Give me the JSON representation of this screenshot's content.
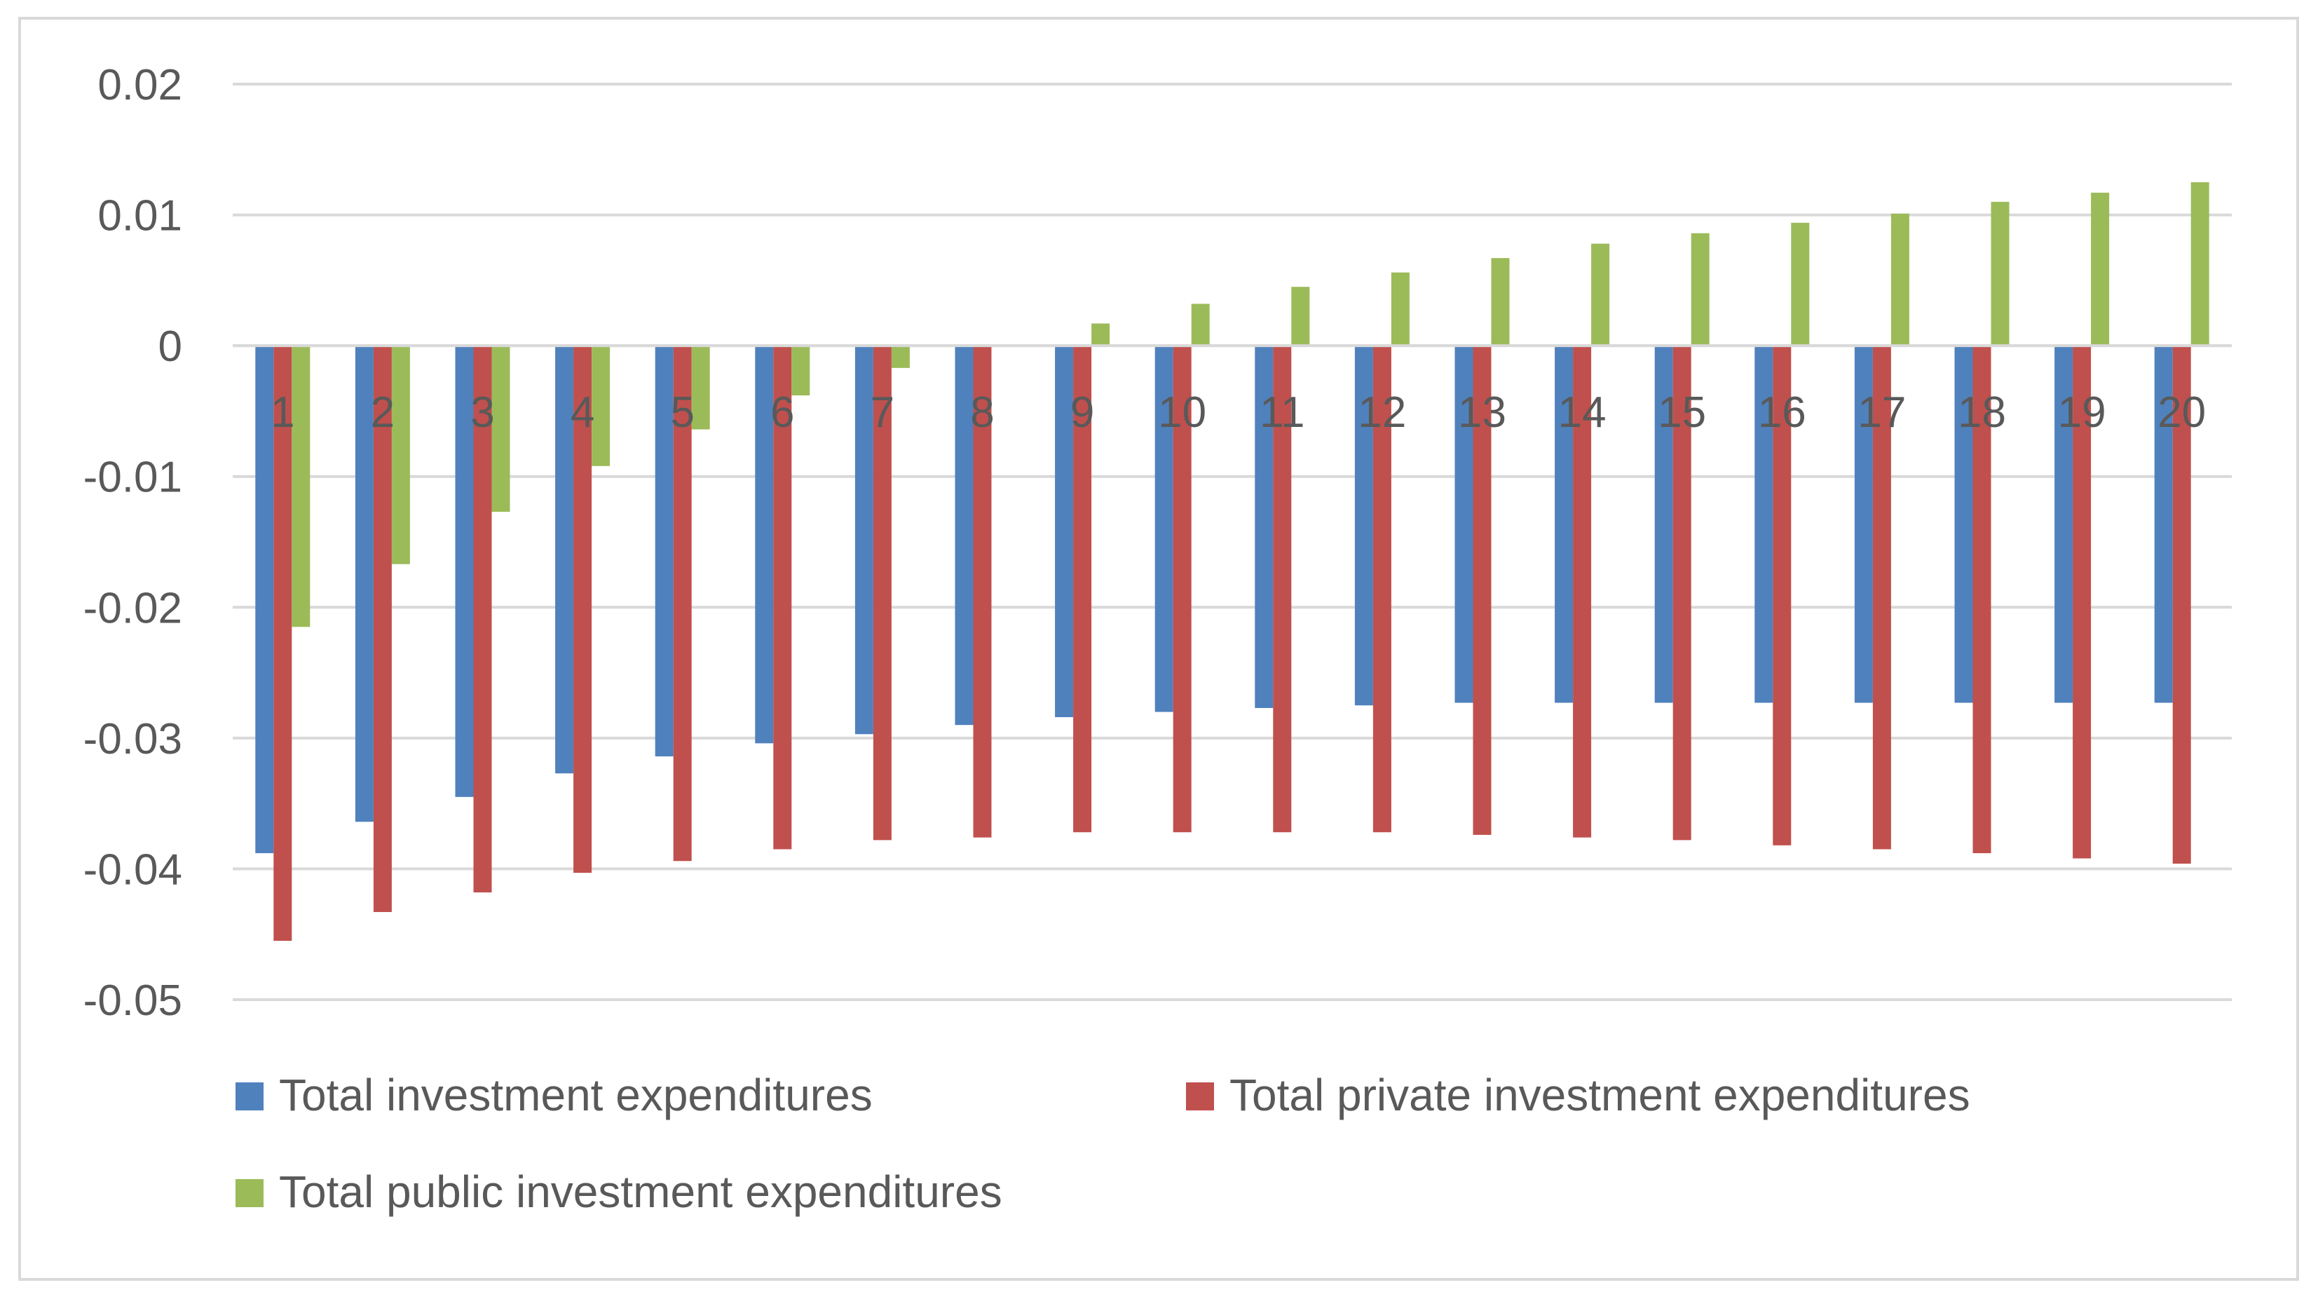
{
  "chart_data": {
    "type": "bar",
    "title": "",
    "xlabel": "",
    "ylabel": "",
    "ylim": [
      -0.05,
      0.02
    ],
    "yticks": [
      0.02,
      0.01,
      0,
      -0.01,
      -0.02,
      -0.03,
      -0.04,
      -0.05
    ],
    "ytick_labels": [
      "0.02",
      "0.01",
      "0",
      "-0.01",
      "-0.02",
      "-0.03",
      "-0.04",
      "-0.05"
    ],
    "grid": true,
    "legend_position": "bottom",
    "categories": [
      "1",
      "2",
      "3",
      "4",
      "5",
      "6",
      "7",
      "8",
      "9",
      "10",
      "11",
      "12",
      "13",
      "14",
      "15",
      "16",
      "17",
      "18",
      "19",
      "20"
    ],
    "series": [
      {
        "name": "Total investment expenditures",
        "color": "#4f81bd",
        "values": [
          -0.0388,
          -0.0364,
          -0.0345,
          -0.0327,
          -0.0314,
          -0.0304,
          -0.0297,
          -0.029,
          -0.0284,
          -0.028,
          -0.0277,
          -0.0275,
          -0.0273,
          -0.0273,
          -0.0273,
          -0.0273,
          -0.0273,
          -0.0273,
          -0.0273,
          -0.0273
        ]
      },
      {
        "name": "Total private investment expenditures",
        "color": "#c0504d",
        "values": [
          -0.0455,
          -0.0433,
          -0.0418,
          -0.0403,
          -0.0394,
          -0.0385,
          -0.0378,
          -0.0376,
          -0.0372,
          -0.0372,
          -0.0372,
          -0.0372,
          -0.0374,
          -0.0376,
          -0.0378,
          -0.0382,
          -0.0385,
          -0.0388,
          -0.0392,
          -0.0396
        ]
      },
      {
        "name": "Total public investment expenditures",
        "color": "#9bbb59",
        "values": [
          -0.0215,
          -0.0167,
          -0.0127,
          -0.0092,
          -0.0064,
          -0.0038,
          -0.0017,
          0.0,
          0.0017,
          0.0032,
          0.0045,
          0.0056,
          0.0067,
          0.0078,
          0.0086,
          0.0094,
          0.0101,
          0.011,
          0.0117,
          0.0125
        ]
      }
    ]
  }
}
